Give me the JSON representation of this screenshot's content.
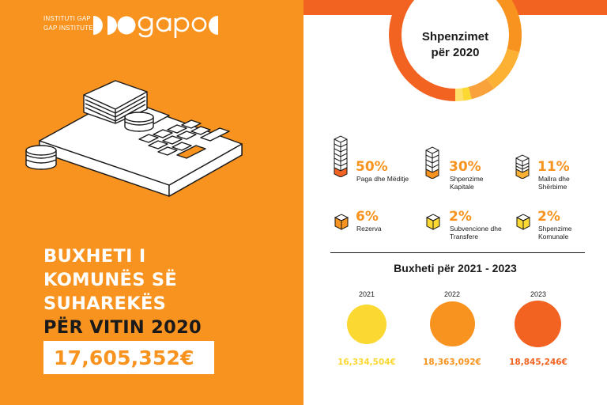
{
  "brand": {
    "line1": "INSTITUTI GAP",
    "line2": "GAP INSTITUTE",
    "logo_name": "gap-institute-logo"
  },
  "title": {
    "line1": "BUXHETI I",
    "line2": "KOMUNËS SË",
    "line3": "SUHAREKËS",
    "line4": "PËR VITIN 2020"
  },
  "total_amount": "17,605,352€",
  "spending": {
    "title_line1": "Shpenzimet",
    "title_line2": "për 2020",
    "categories": [
      {
        "pct": "50%",
        "label_line1": "Paga dhe Mëditje",
        "label_line2": "",
        "share": 50
      },
      {
        "pct": "30%",
        "label_line1": "Shpenzime",
        "label_line2": "Kapitale",
        "share": 30
      },
      {
        "pct": "11%",
        "label_line1": "Mallra dhe",
        "label_line2": "Shërbime",
        "share": 11
      },
      {
        "pct": "6%",
        "label_line1": "Rezerva",
        "label_line2": "",
        "share": 6
      },
      {
        "pct": "2%",
        "label_line1": "Subvencione dhe",
        "label_line2": "Transfere",
        "share": 2
      },
      {
        "pct": "2%",
        "label_line1": "Shpenzime",
        "label_line2": "Komunale",
        "share": 2
      }
    ]
  },
  "budget_projection": {
    "title": "Buxheti për 2021 - 2023",
    "years": [
      {
        "year": "2021",
        "value": "16,334,504€",
        "color": "#fcd833"
      },
      {
        "year": "2022",
        "value": "18,363,092€",
        "color": "#f7931e"
      },
      {
        "year": "2023",
        "value": "18,845,246€",
        "color": "#f26322"
      }
    ]
  },
  "colors": {
    "orange": "#f7931e",
    "dark_orange": "#f26322",
    "yellow": "#fcd833",
    "text": "#1a1a1a"
  }
}
